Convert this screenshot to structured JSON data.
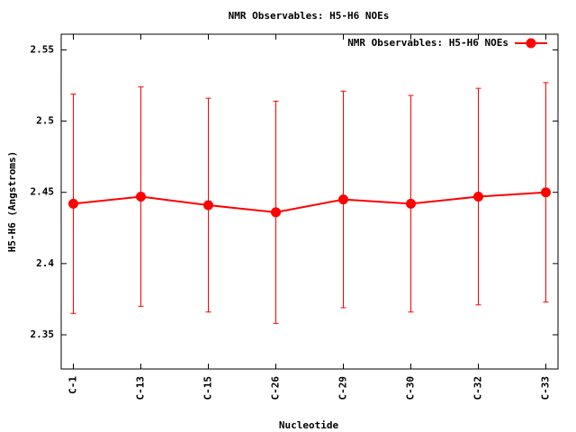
{
  "chart_data": {
    "type": "line",
    "title": "NMR Observables: H5-H6 NOEs",
    "x_label": "Nucleotide",
    "y_label": "H5-H6 (Angstroms)",
    "categories": [
      "C-1",
      "C-13",
      "C-15",
      "C-26",
      "C-29",
      "C-30",
      "C-32",
      "C-33"
    ],
    "series": [
      {
        "name": "NMR Observables: H5-H6 NOEs",
        "color": "#ff0000",
        "values": [
          2.442,
          2.447,
          2.441,
          2.436,
          2.445,
          2.442,
          2.447,
          2.45
        ],
        "errors": [
          0.077,
          0.077,
          0.075,
          0.078,
          0.076,
          0.076,
          0.076,
          0.077
        ]
      }
    ],
    "ylim": [
      2.326,
      2.561
    ],
    "yticks": [
      2.35,
      2.4,
      2.45,
      2.5,
      2.55
    ],
    "legend": "upper right"
  }
}
